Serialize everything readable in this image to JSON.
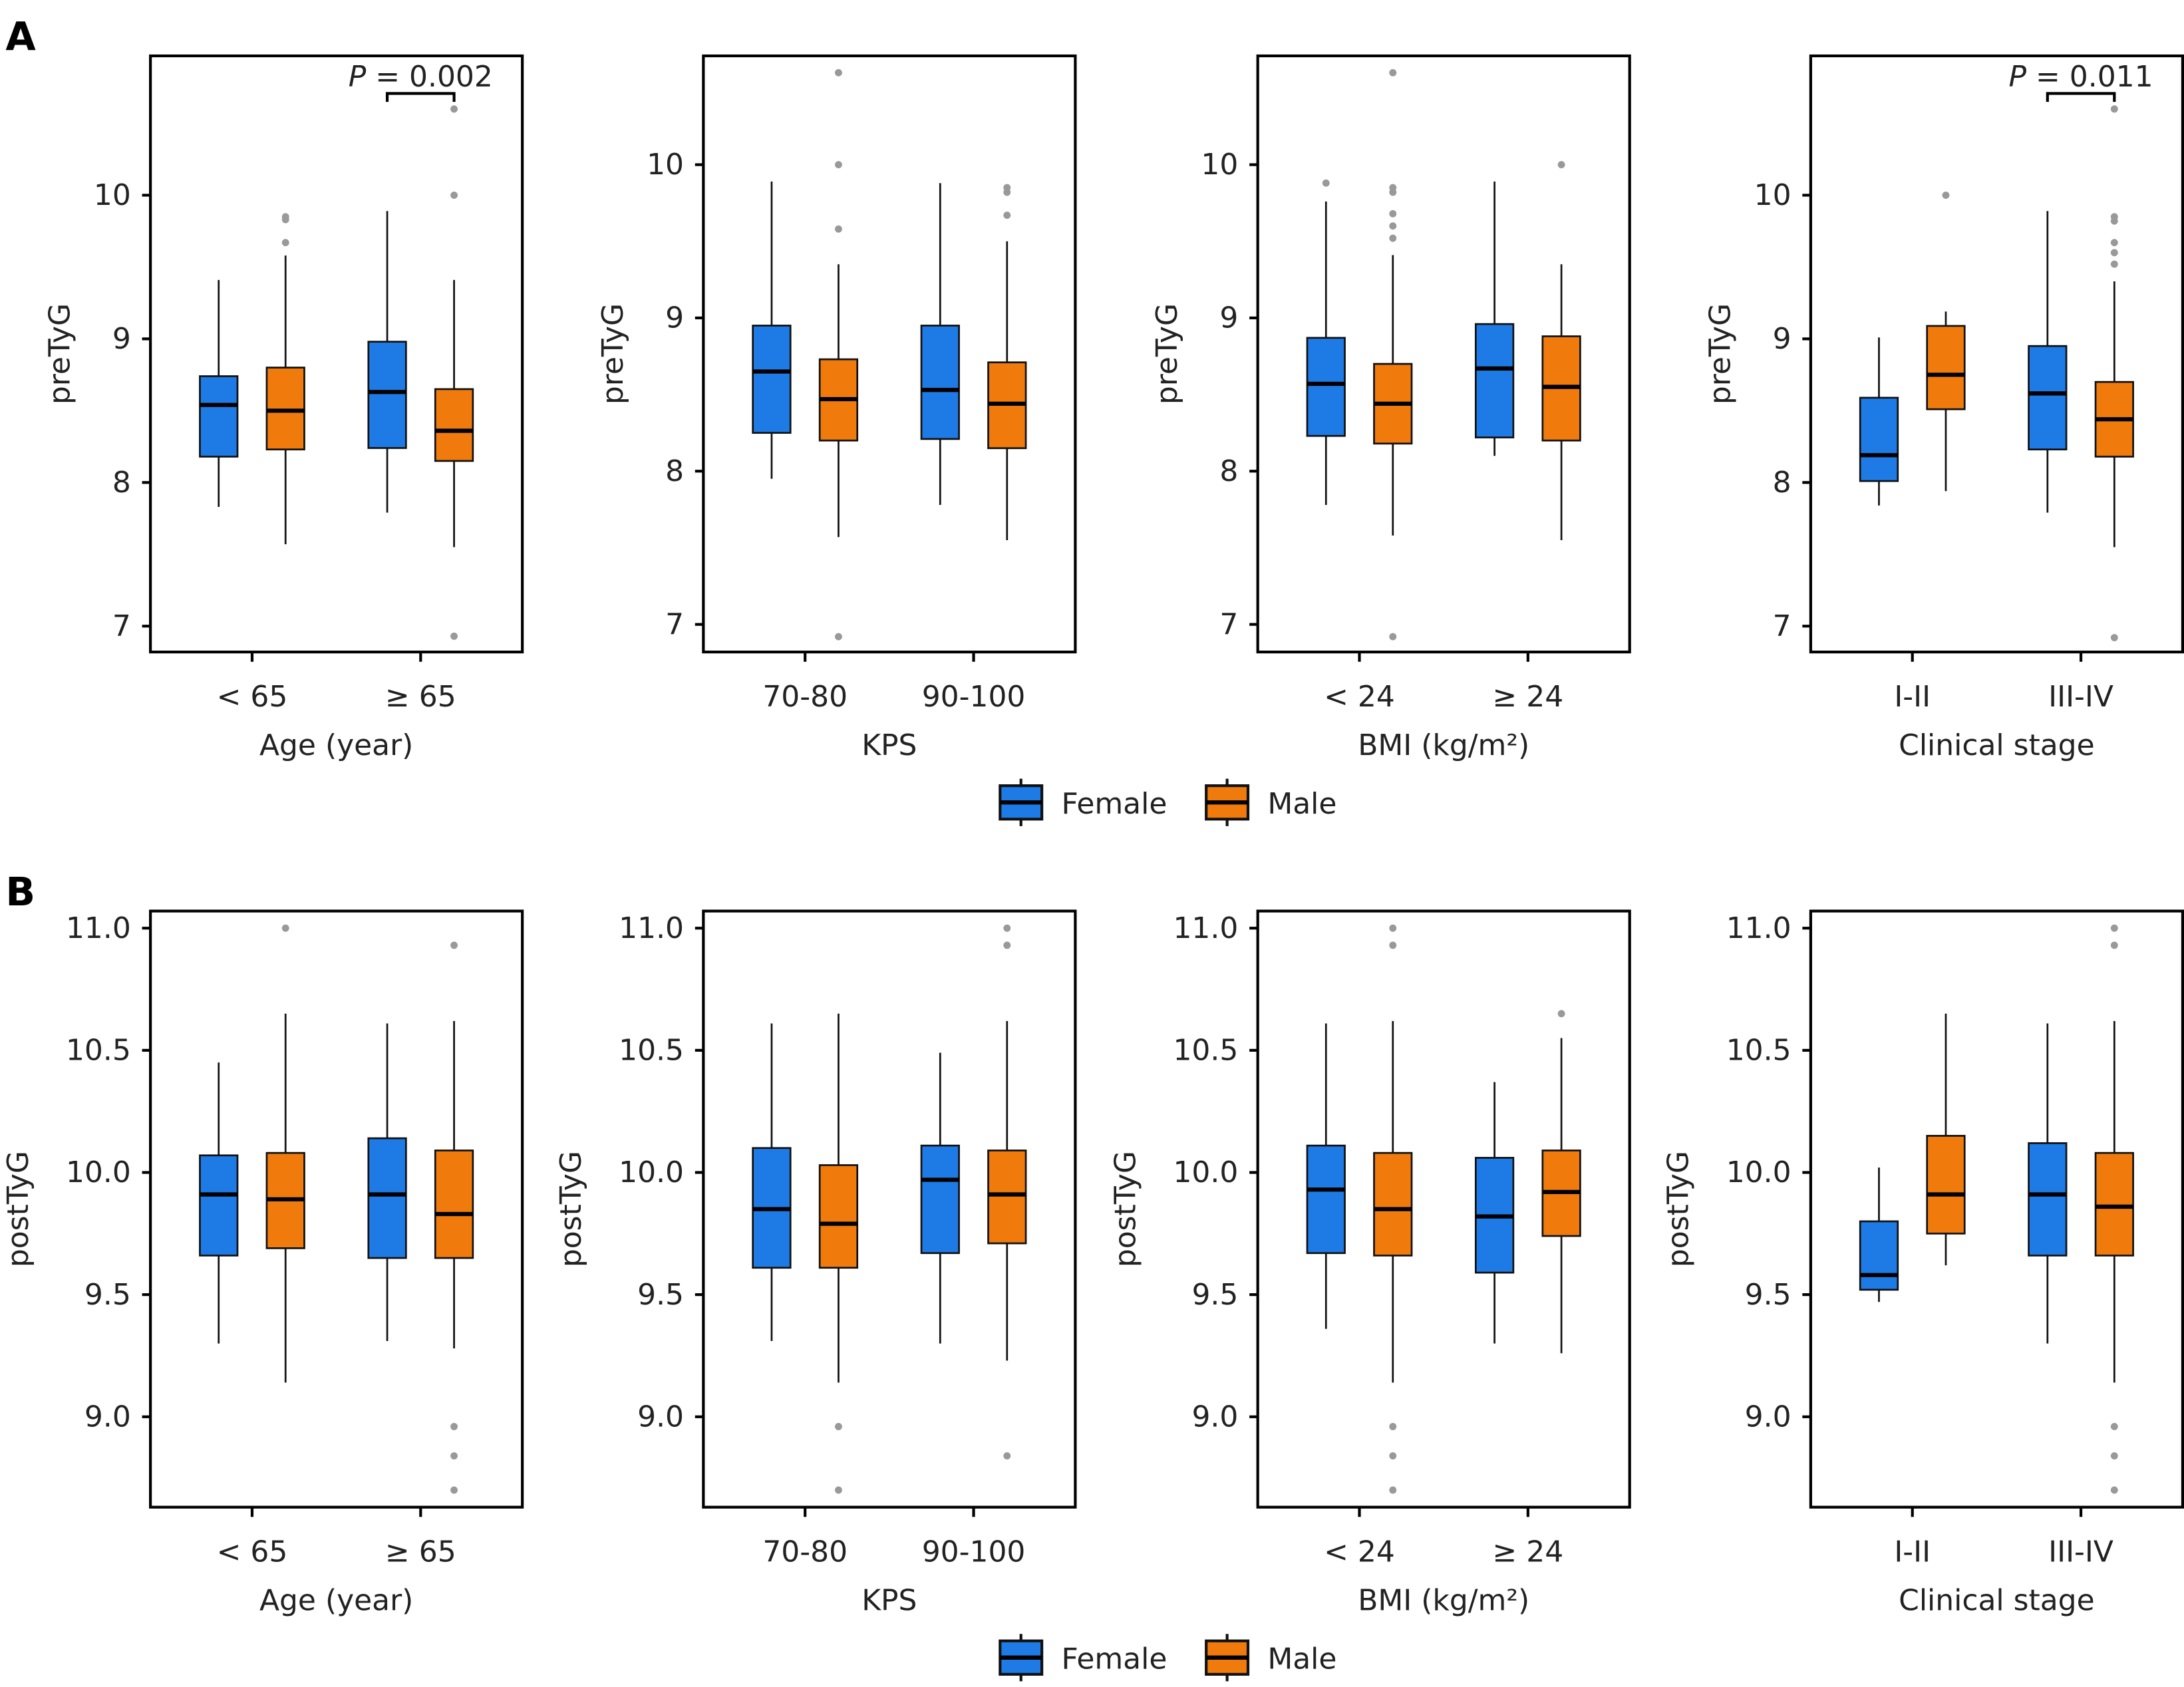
{
  "figure": {
    "panel_labels": [
      "A",
      "B"
    ],
    "legend": [
      {
        "name": "Female",
        "color": "#1e7be6"
      },
      {
        "name": "Male",
        "color": "#f07b0c"
      }
    ]
  },
  "chart_data": [
    {
      "type": "box",
      "row": "A",
      "title": "",
      "xlabel": "Age (year)",
      "ylabel": "preTyG",
      "categories": [
        "< 65",
        "≥ 65"
      ],
      "ylim": [
        6.82,
        10.97
      ],
      "yticks": [
        "7",
        "8",
        "9",
        "10"
      ],
      "grid": false,
      "series": [
        {
          "name": "Female",
          "boxes": [
            {
              "low": 7.83,
              "q1": 8.18,
              "median": 8.54,
              "q3": 8.74,
              "high": 9.41,
              "outliers": []
            },
            {
              "low": 7.79,
              "q1": 8.24,
              "median": 8.63,
              "q3": 8.98,
              "high": 9.89,
              "outliers": []
            }
          ]
        },
        {
          "name": "Male",
          "boxes": [
            {
              "low": 7.57,
              "q1": 8.23,
              "median": 8.5,
              "q3": 8.8,
              "high": 9.58,
              "outliers": [
                9.85,
                9.83,
                9.67
              ]
            },
            {
              "low": 7.55,
              "q1": 8.15,
              "median": 8.36,
              "q3": 8.65,
              "high": 9.41,
              "outliers": [
                10.6,
                10.0,
                6.93
              ]
            }
          ]
        }
      ],
      "annotation": {
        "text": "P = 0.002",
        "category": "≥ 65"
      }
    },
    {
      "type": "box",
      "row": "A",
      "title": "",
      "xlabel": "KPS",
      "ylabel": "preTyG",
      "categories": [
        "70-80",
        "90-100"
      ],
      "ylim": [
        6.82,
        10.71
      ],
      "yticks": [
        "7",
        "8",
        "9",
        "10"
      ],
      "grid": false,
      "series": [
        {
          "name": "Female",
          "boxes": [
            {
              "low": 7.95,
              "q1": 8.25,
              "median": 8.65,
              "q3": 8.95,
              "high": 9.89,
              "outliers": []
            },
            {
              "low": 7.78,
              "q1": 8.21,
              "median": 8.53,
              "q3": 8.95,
              "high": 9.88,
              "outliers": []
            }
          ]
        },
        {
          "name": "Male",
          "boxes": [
            {
              "low": 7.57,
              "q1": 8.2,
              "median": 8.47,
              "q3": 8.73,
              "high": 9.35,
              "outliers": [
                10.6,
                10.0,
                9.58,
                6.92
              ]
            },
            {
              "low": 7.55,
              "q1": 8.15,
              "median": 8.44,
              "q3": 8.71,
              "high": 9.5,
              "outliers": [
                9.85,
                9.82,
                9.67
              ]
            }
          ]
        }
      ]
    },
    {
      "type": "box",
      "row": "A",
      "title": "",
      "xlabel": "BMI (kg/m²)",
      "ylabel": "preTyG",
      "categories": [
        "< 24",
        "≥ 24"
      ],
      "ylim": [
        6.82,
        10.71
      ],
      "yticks": [
        "7",
        "8",
        "9",
        "10"
      ],
      "grid": false,
      "series": [
        {
          "name": "Female",
          "boxes": [
            {
              "low": 7.78,
              "q1": 8.23,
              "median": 8.57,
              "q3": 8.87,
              "high": 9.76,
              "outliers": [
                9.88
              ]
            },
            {
              "low": 8.1,
              "q1": 8.22,
              "median": 8.67,
              "q3": 8.96,
              "high": 9.89,
              "outliers": []
            }
          ]
        },
        {
          "name": "Male",
          "boxes": [
            {
              "low": 7.58,
              "q1": 8.18,
              "median": 8.44,
              "q3": 8.7,
              "high": 9.41,
              "outliers": [
                10.6,
                9.85,
                9.82,
                9.68,
                9.6,
                9.52,
                6.92
              ]
            },
            {
              "low": 7.55,
              "q1": 8.2,
              "median": 8.55,
              "q3": 8.88,
              "high": 9.35,
              "outliers": [
                10.0
              ]
            }
          ]
        }
      ]
    },
    {
      "type": "box",
      "row": "A",
      "title": "",
      "xlabel": "Clinical stage",
      "ylabel": "preTyG",
      "categories": [
        "I-II",
        "III-IV"
      ],
      "ylim": [
        6.82,
        10.97
      ],
      "yticks": [
        "7",
        "8",
        "9",
        "10"
      ],
      "grid": false,
      "series": [
        {
          "name": "Female",
          "boxes": [
            {
              "low": 7.84,
              "q1": 8.01,
              "median": 8.19,
              "q3": 8.59,
              "high": 9.01,
              "outliers": []
            },
            {
              "low": 7.79,
              "q1": 8.23,
              "median": 8.62,
              "q3": 8.95,
              "high": 9.89,
              "outliers": []
            }
          ]
        },
        {
          "name": "Male",
          "boxes": [
            {
              "low": 7.94,
              "q1": 8.51,
              "median": 8.75,
              "q3": 9.09,
              "high": 9.19,
              "outliers": [
                10.0
              ]
            },
            {
              "low": 7.55,
              "q1": 8.18,
              "median": 8.44,
              "q3": 8.7,
              "high": 9.4,
              "outliers": [
                10.6,
                9.85,
                9.82,
                9.67,
                9.6,
                9.52,
                6.92
              ]
            }
          ]
        }
      ],
      "annotation": {
        "text": "P = 0.011",
        "category": "III-IV"
      }
    },
    {
      "type": "box",
      "row": "B",
      "title": "",
      "xlabel": "Age (year)",
      "ylabel": "postTyG",
      "categories": [
        "< 65",
        "≥ 65"
      ],
      "ylim": [
        8.63,
        11.07
      ],
      "yticks": [
        "9.0",
        "9.5",
        "10.0",
        "10.5",
        "11.0"
      ],
      "grid": false,
      "series": [
        {
          "name": "Female",
          "boxes": [
            {
              "low": 9.3,
              "q1": 9.66,
              "median": 9.91,
              "q3": 10.07,
              "high": 10.45,
              "outliers": []
            },
            {
              "low": 9.31,
              "q1": 9.65,
              "median": 9.91,
              "q3": 10.14,
              "high": 10.61,
              "outliers": []
            }
          ]
        },
        {
          "name": "Male",
          "boxes": [
            {
              "low": 9.14,
              "q1": 9.69,
              "median": 9.89,
              "q3": 10.08,
              "high": 10.65,
              "outliers": [
                11.0
              ]
            },
            {
              "low": 9.28,
              "q1": 9.65,
              "median": 9.83,
              "q3": 10.09,
              "high": 10.62,
              "outliers": [
                10.93,
                8.96,
                8.84,
                8.7
              ]
            }
          ]
        }
      ]
    },
    {
      "type": "box",
      "row": "B",
      "title": "",
      "xlabel": "KPS",
      "ylabel": "postTyG",
      "categories": [
        "70-80",
        "90-100"
      ],
      "ylim": [
        8.63,
        11.07
      ],
      "yticks": [
        "9.0",
        "9.5",
        "10.0",
        "10.5",
        "11.0"
      ],
      "grid": false,
      "series": [
        {
          "name": "Female",
          "boxes": [
            {
              "low": 9.31,
              "q1": 9.61,
              "median": 9.85,
              "q3": 10.1,
              "high": 10.61,
              "outliers": []
            },
            {
              "low": 9.3,
              "q1": 9.67,
              "median": 9.97,
              "q3": 10.11,
              "high": 10.49,
              "outliers": []
            }
          ]
        },
        {
          "name": "Male",
          "boxes": [
            {
              "low": 9.14,
              "q1": 9.61,
              "median": 9.79,
              "q3": 10.03,
              "high": 10.65,
              "outliers": [
                8.96,
                8.7
              ]
            },
            {
              "low": 9.23,
              "q1": 9.71,
              "median": 9.91,
              "q3": 10.09,
              "high": 10.62,
              "outliers": [
                11.0,
                10.93,
                8.84
              ]
            }
          ]
        }
      ]
    },
    {
      "type": "box",
      "row": "B",
      "title": "",
      "xlabel": "BMI (kg/m²)",
      "ylabel": "postTyG",
      "categories": [
        "< 24",
        "≥ 24"
      ],
      "ylim": [
        8.63,
        11.07
      ],
      "yticks": [
        "9.0",
        "9.5",
        "10.0",
        "10.5",
        "11.0"
      ],
      "grid": false,
      "series": [
        {
          "name": "Female",
          "boxes": [
            {
              "low": 9.36,
              "q1": 9.67,
              "median": 9.93,
              "q3": 10.11,
              "high": 10.61,
              "outliers": []
            },
            {
              "low": 9.3,
              "q1": 9.59,
              "median": 9.82,
              "q3": 10.06,
              "high": 10.37,
              "outliers": []
            }
          ]
        },
        {
          "name": "Male",
          "boxes": [
            {
              "low": 9.14,
              "q1": 9.66,
              "median": 9.85,
              "q3": 10.08,
              "high": 10.62,
              "outliers": [
                11.0,
                10.93,
                8.96,
                8.84,
                8.7
              ]
            },
            {
              "low": 9.26,
              "q1": 9.74,
              "median": 9.92,
              "q3": 10.09,
              "high": 10.55,
              "outliers": [
                10.65
              ]
            }
          ]
        }
      ]
    },
    {
      "type": "box",
      "row": "B",
      "title": "",
      "xlabel": "Clinical stage",
      "ylabel": "postTyG",
      "categories": [
        "I-II",
        "III-IV"
      ],
      "ylim": [
        8.63,
        11.07
      ],
      "yticks": [
        "9.0",
        "9.5",
        "10.0",
        "10.5",
        "11.0"
      ],
      "grid": false,
      "series": [
        {
          "name": "Female",
          "boxes": [
            {
              "low": 9.47,
              "q1": 9.52,
              "median": 9.58,
              "q3": 9.8,
              "high": 10.02,
              "outliers": []
            },
            {
              "low": 9.3,
              "q1": 9.66,
              "median": 9.91,
              "q3": 10.12,
              "high": 10.61,
              "outliers": []
            }
          ]
        },
        {
          "name": "Male",
          "boxes": [
            {
              "low": 9.62,
              "q1": 9.75,
              "median": 9.91,
              "q3": 10.15,
              "high": 10.65,
              "outliers": []
            },
            {
              "low": 9.14,
              "q1": 9.66,
              "median": 9.86,
              "q3": 10.08,
              "high": 10.62,
              "outliers": [
                11.0,
                10.93,
                8.96,
                8.84,
                8.7
              ]
            }
          ]
        }
      ]
    }
  ]
}
